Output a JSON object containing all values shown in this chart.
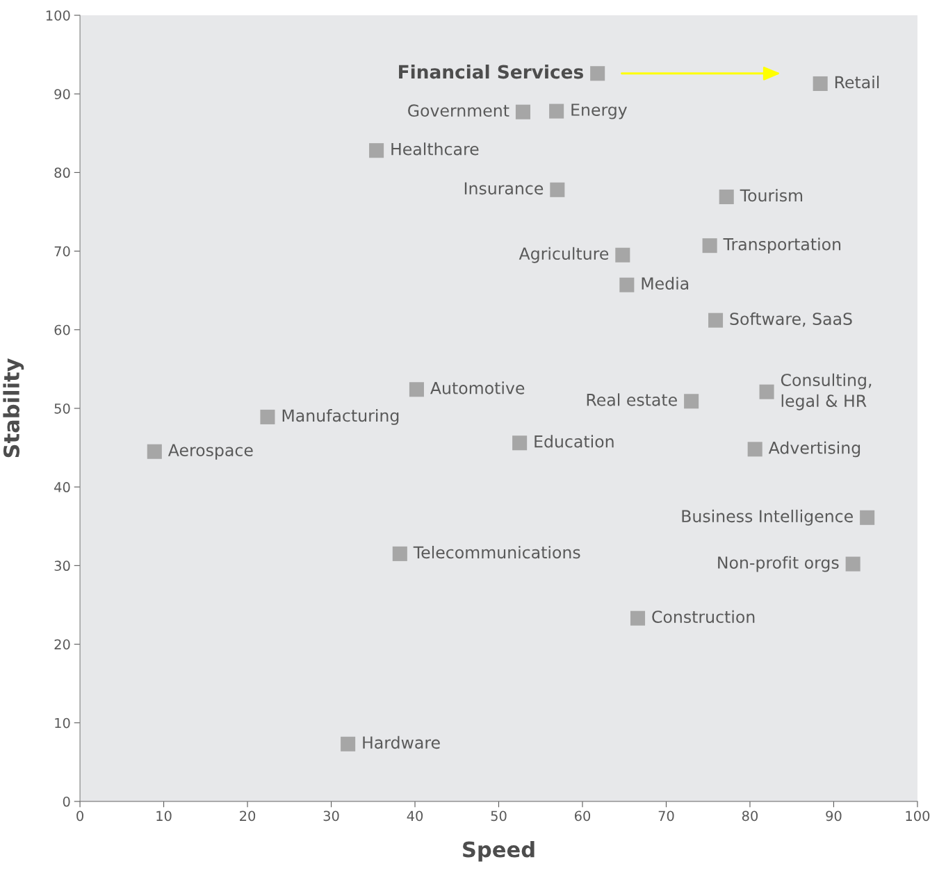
{
  "chart_data": {
    "type": "scatter",
    "xlabel": "Speed",
    "ylabel": "Stability",
    "xlim": [
      0,
      100
    ],
    "ylim": [
      0,
      100
    ],
    "xticks": [
      0,
      10,
      20,
      30,
      40,
      50,
      60,
      70,
      80,
      90,
      100
    ],
    "yticks": [
      0,
      10,
      20,
      30,
      40,
      50,
      60,
      70,
      80,
      90,
      100
    ],
    "grid": false,
    "marker": "square",
    "series": [
      {
        "color": "#a6a6a6",
        "x": [
          61.8,
          88.4,
          52.9,
          56.9,
          35.4,
          57.0,
          77.2,
          75.2,
          64.8,
          65.3,
          75.9,
          82.0,
          73.0,
          40.2,
          22.4,
          8.9,
          52.5,
          80.6,
          94.0,
          92.3,
          38.2,
          66.6,
          32.0
        ],
        "values": [
          92.6,
          91.3,
          87.7,
          87.8,
          82.8,
          77.8,
          76.9,
          70.7,
          69.5,
          65.7,
          61.2,
          52.1,
          50.9,
          52.4,
          48.9,
          44.5,
          45.6,
          44.8,
          36.1,
          30.2,
          31.5,
          23.3,
          7.3
        ],
        "value_labels": [
          "Financial Services",
          "Retail",
          "Government",
          "Energy",
          "Healthcare",
          "Insurance",
          "Tourism",
          "Transportation",
          "Agriculture",
          "Media",
          "Software, SaaS",
          "Consulting,\nlegal & HR",
          "Real estate",
          "Automotive",
          "Manufacturing",
          "Aerospace",
          "Education",
          "Advertising",
          "Business Intelligence",
          "Non-profit orgs",
          "Telecommunications",
          "Construction",
          "Hardware"
        ]
      }
    ]
  }
}
